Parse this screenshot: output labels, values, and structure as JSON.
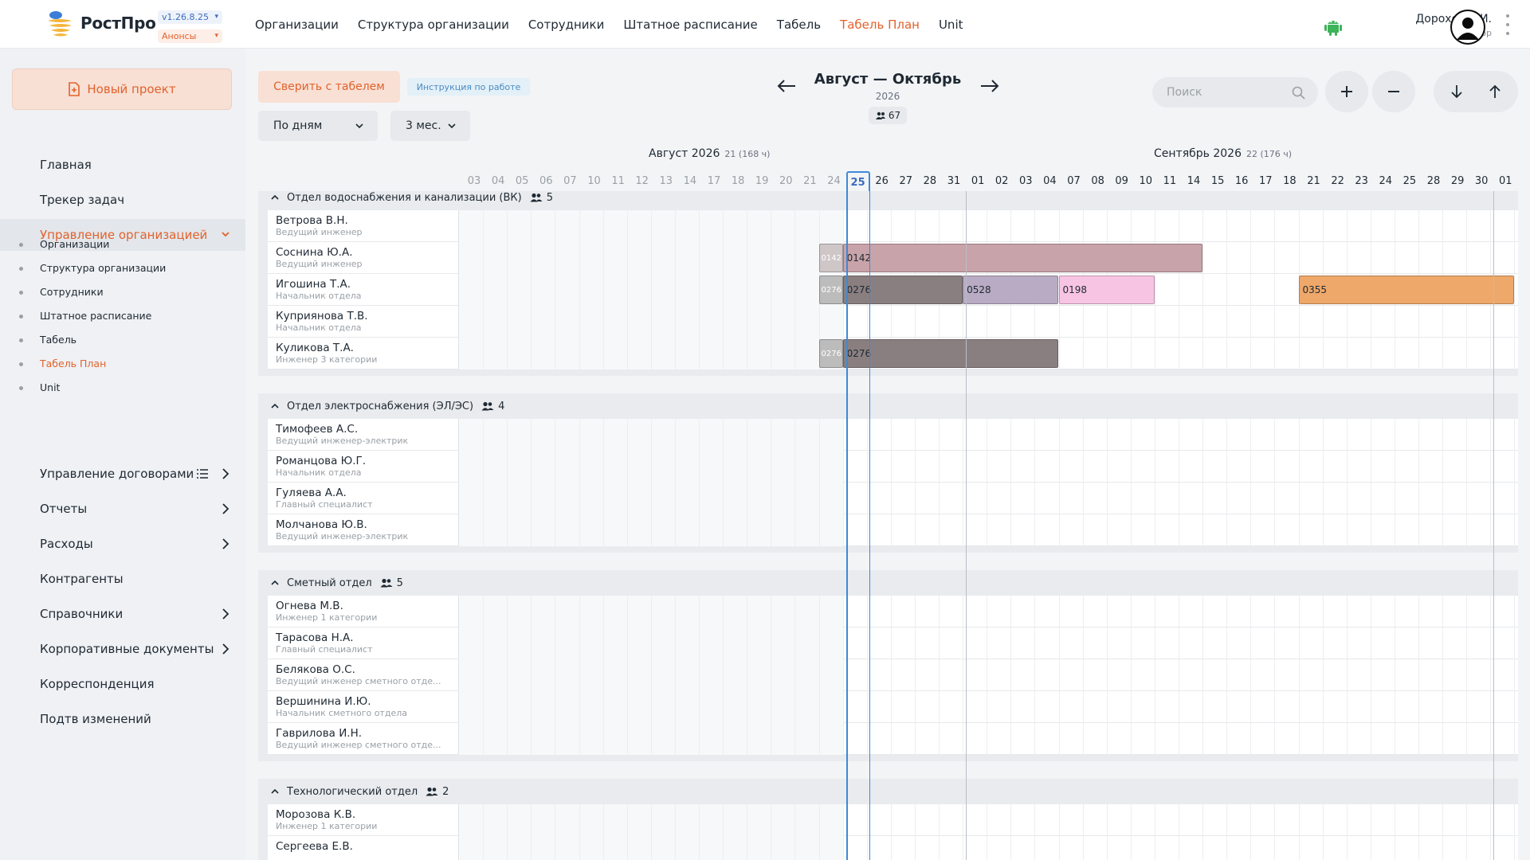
{
  "app": {
    "logo_text": "РостПро",
    "version": "v1.26.8.25",
    "news_label": "Анонсы"
  },
  "topnav": [
    {
      "label": "Организации",
      "active": false
    },
    {
      "label": "Структура организации",
      "active": false
    },
    {
      "label": "Сотрудники",
      "active": false
    },
    {
      "label": "Штатное расписание",
      "active": false
    },
    {
      "label": "Табель",
      "active": false
    },
    {
      "label": "Табель План",
      "active": true
    },
    {
      "label": "Unit",
      "active": false
    }
  ],
  "user": {
    "name": "Дорохов С.И.",
    "role": "develop"
  },
  "sidebar": {
    "new_project": "Новый проект",
    "items": [
      {
        "label": "Главная",
        "icon": "dashboard-icon"
      },
      {
        "label": "Трекер задач",
        "icon": "tasks-icon"
      },
      {
        "label": "Управление организацией",
        "icon": "people-icon",
        "open": true
      },
      {
        "label": "Управление договорами",
        "icon": "contracts-icon"
      },
      {
        "label": "Отчеты",
        "icon": "reports-icon"
      },
      {
        "label": "Расходы",
        "icon": "wallet-icon"
      },
      {
        "label": "Контрагенты",
        "icon": "briefcase-icon"
      },
      {
        "label": "Справочники",
        "icon": "book-icon"
      },
      {
        "label": "Корпоративные документы",
        "icon": "folder-icon"
      },
      {
        "label": "Корреспонденция",
        "icon": "mail-icon"
      },
      {
        "label": "Подтв изменений",
        "icon": "alert-icon"
      }
    ],
    "subitems": [
      {
        "label": "Организации",
        "active": false
      },
      {
        "label": "Структура организации",
        "active": false
      },
      {
        "label": "Сотрудники",
        "active": false
      },
      {
        "label": "Штатное расписание",
        "active": false
      },
      {
        "label": "Табель",
        "active": false
      },
      {
        "label": "Табель План",
        "active": true
      },
      {
        "label": "Unit",
        "active": false
      }
    ]
  },
  "toolbar": {
    "reconcile": "Сверить с табелем",
    "instructions": "Инструкция по работе",
    "group_by": "По дням",
    "range": "3 мес.",
    "period_title": "Август — Октябрь",
    "period_year": "2026",
    "people_count": "67",
    "search_placeholder": "Поиск"
  },
  "calendar": {
    "months": [
      {
        "label": "Август 2026",
        "sub": "21 (168 ч)"
      },
      {
        "label": "Сентябрь 2026",
        "sub": "22 (176 ч)"
      }
    ],
    "days": [
      "03",
      "04",
      "05",
      "06",
      "07",
      "10",
      "11",
      "12",
      "13",
      "14",
      "17",
      "18",
      "19",
      "20",
      "21",
      "24",
      "25",
      "26",
      "27",
      "28",
      "31",
      "01",
      "02",
      "03",
      "04",
      "07",
      "08",
      "09",
      "10",
      "11",
      "14",
      "15",
      "16",
      "17",
      "18",
      "21",
      "22",
      "23",
      "24",
      "25",
      "28",
      "29",
      "30",
      "01"
    ],
    "today_index": 16
  },
  "departments": [
    {
      "name": "Отдел водоснабжения и канализации (ВК)",
      "count": "5",
      "employees": [
        {
          "name": "Ветрова В.Н.",
          "position": "Ведущий инженер",
          "bars": []
        },
        {
          "name": "Соснина Ю.А.",
          "position": "Ведущий инженер",
          "bars": [
            {
              "label": "0142",
              "from": 15,
              "to": 15,
              "color": "#cfc6c8",
              "stub": true
            },
            {
              "label": "0142",
              "from": 16,
              "to": 30,
              "color": "#c8a3a9"
            }
          ]
        },
        {
          "name": "Игошина Т.А.",
          "position": "Начальник отдела",
          "bars": [
            {
              "label": "0276",
              "from": 15,
              "to": 15,
              "color": "#bcbcbc",
              "stub": true
            },
            {
              "label": "0276",
              "from": 16,
              "to": 20,
              "color": "#8a7f80"
            },
            {
              "label": "0528",
              "from": 21,
              "to": 24,
              "color": "#b9abc3"
            },
            {
              "label": "0198",
              "from": 25,
              "to": 28,
              "color": "#f8c4e4"
            },
            {
              "label": "0355",
              "from": 35,
              "to": 43,
              "color": "#eea86a"
            }
          ]
        },
        {
          "name": "Куприянова Т.В.",
          "position": "Начальник отдела",
          "bars": []
        },
        {
          "name": "Куликова Т.А.",
          "position": "Инженер 3 категории",
          "bars": [
            {
              "label": "0276",
              "from": 15,
              "to": 15,
              "color": "#bcbcbc",
              "stub": true
            },
            {
              "label": "0276",
              "from": 16,
              "to": 24,
              "color": "#8a7f80"
            }
          ]
        }
      ]
    },
    {
      "name": "Отдел электроснабжения (ЭЛ/ЭС)",
      "count": "4",
      "employees": [
        {
          "name": "Тимофеев А.С.",
          "position": "Ведущий инженер-электрик",
          "bars": []
        },
        {
          "name": "Романцова Ю.Г.",
          "position": "Начальник отдела",
          "bars": []
        },
        {
          "name": "Гуляева А.А.",
          "position": "Главный специалист",
          "bars": []
        },
        {
          "name": "Молчанова Ю.В.",
          "position": "Ведущий инженер-электрик",
          "bars": []
        }
      ]
    },
    {
      "name": "Сметный отдел",
      "count": "5",
      "employees": [
        {
          "name": "Огнева М.В.",
          "position": "Инженер 1 категории",
          "bars": []
        },
        {
          "name": "Тарасова Н.А.",
          "position": "Главный специалист",
          "bars": []
        },
        {
          "name": "Белякова О.С.",
          "position": "Ведущий инженер сметного отде...",
          "bars": []
        },
        {
          "name": "Вершинина И.Ю.",
          "position": "Начальник сметного отдела",
          "bars": []
        },
        {
          "name": "Гаврилова И.Н.",
          "position": "Ведущий инженер сметного отде...",
          "bars": []
        }
      ]
    },
    {
      "name": "Технологический отдел",
      "count": "2",
      "employees": [
        {
          "name": "Морозова К.В.",
          "position": "Инженер 1 категории",
          "bars": []
        },
        {
          "name": "Сергеева Е.В.",
          "position": "",
          "bars": []
        }
      ]
    }
  ],
  "colors": {
    "accent": "#e2622c",
    "today_line": "#3c8ad6"
  }
}
